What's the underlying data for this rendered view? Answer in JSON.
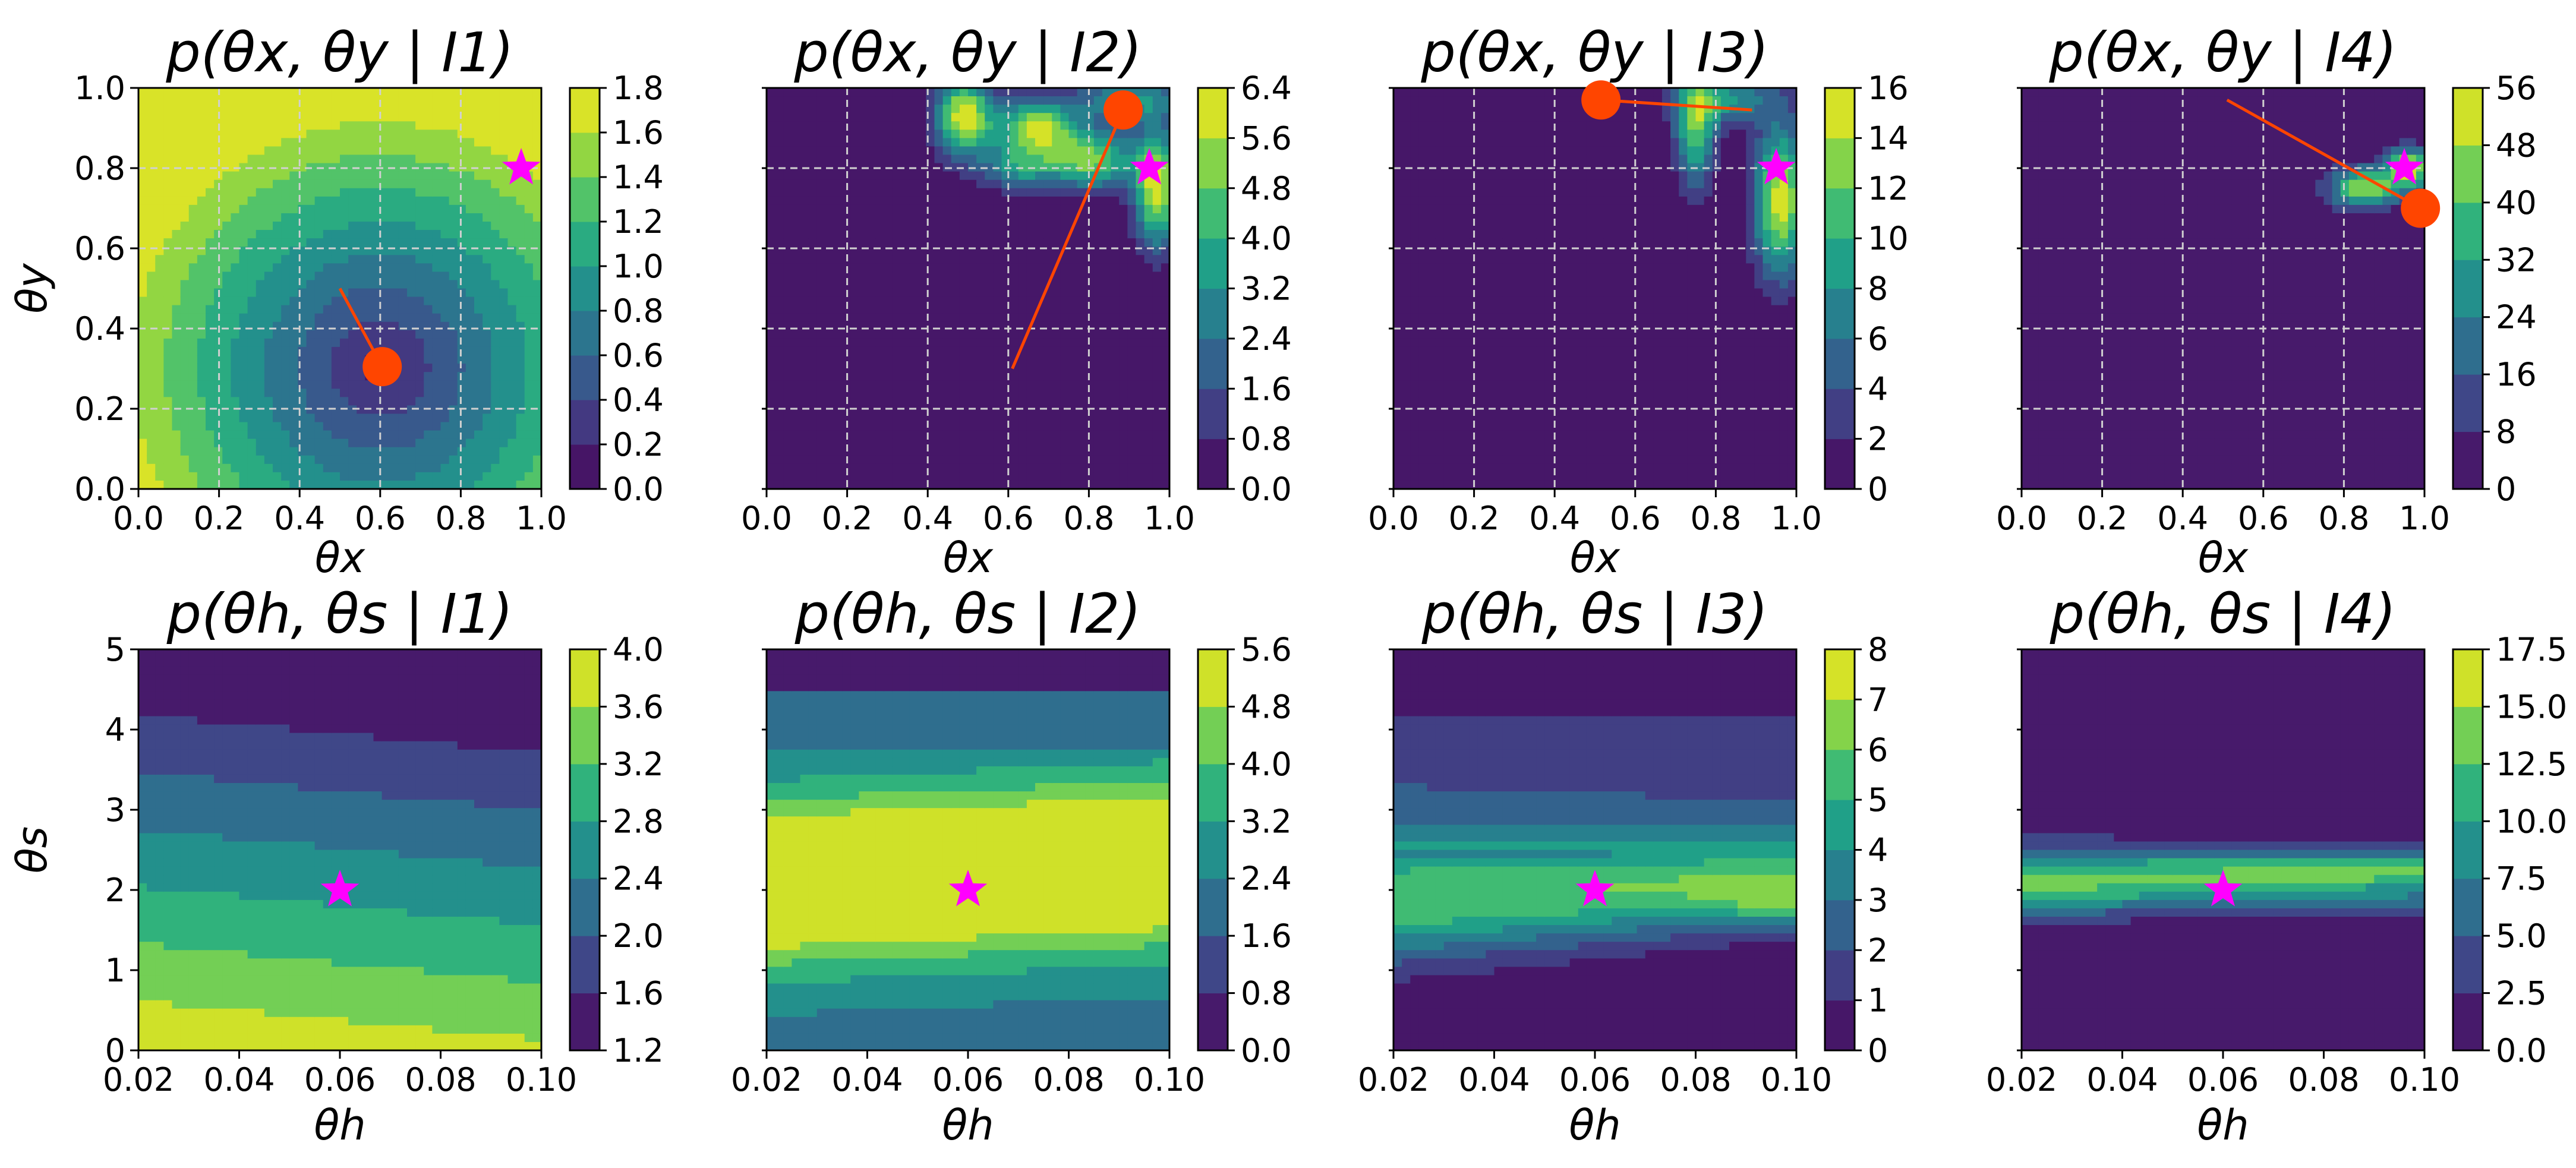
{
  "figure": {
    "type": "contour_grid",
    "rows": 2,
    "cols": 4
  },
  "colors": {
    "marker_estimate": "#ff4500",
    "marker_truth": "#ff00ff",
    "grid": "#d0d0d0",
    "viridis": [
      "#440154",
      "#482878",
      "#3e4989",
      "#31688e",
      "#26828e",
      "#1f9e89",
      "#35b779",
      "#6ece58",
      "#b5de2b",
      "#fde725"
    ]
  },
  "chart_data": [
    {
      "type": "heatmap",
      "title": "p(θx, θy | I1)",
      "xlabel": "θx",
      "ylabel": "θy",
      "xlim": [
        0.0,
        1.0
      ],
      "ylim": [
        0.0,
        1.0
      ],
      "xticks": [
        "0.0",
        "0.2",
        "0.4",
        "0.6",
        "0.8",
        "1.0"
      ],
      "yticks": [
        "0.0",
        "0.2",
        "0.4",
        "0.6",
        "0.8",
        "1.0"
      ],
      "grid": true,
      "colorbar_ticks": [
        "0.0",
        "0.2",
        "0.4",
        "0.6",
        "0.8",
        "1.0",
        "1.2",
        "1.4",
        "1.6",
        "1.8"
      ],
      "colorbar_range": [
        0.0,
        1.8
      ],
      "truth_marker": {
        "x": 0.95,
        "y": 0.8
      },
      "estimate_marker": {
        "x": 0.605,
        "y": 0.305
      },
      "estimate_trail": [
        [
          0.5,
          0.5
        ],
        [
          0.605,
          0.305
        ]
      ]
    },
    {
      "type": "heatmap",
      "title": "p(θx, θy | I2)",
      "xlabel": "θx",
      "ylabel": "",
      "xlim": [
        0.0,
        1.0
      ],
      "ylim": [
        0.0,
        1.0
      ],
      "xticks": [
        "0.0",
        "0.2",
        "0.4",
        "0.6",
        "0.8",
        "1.0"
      ],
      "yticks": [],
      "grid": true,
      "colorbar_ticks": [
        "0.0",
        "0.8",
        "1.6",
        "2.4",
        "3.2",
        "4.0",
        "4.8",
        "5.6",
        "6.4"
      ],
      "colorbar_range": [
        0.0,
        6.4
      ],
      "truth_marker": {
        "x": 0.95,
        "y": 0.8
      },
      "estimate_marker": {
        "x": 0.885,
        "y": 0.945
      },
      "estimate_trail": [
        [
          0.61,
          0.3
        ],
        [
          0.885,
          0.945
        ]
      ]
    },
    {
      "type": "heatmap",
      "title": "p(θx, θy | I3)",
      "xlabel": "θx",
      "ylabel": "",
      "xlim": [
        0.0,
        1.0
      ],
      "ylim": [
        0.0,
        1.0
      ],
      "xticks": [
        "0.0",
        "0.2",
        "0.4",
        "0.6",
        "0.8",
        "1.0"
      ],
      "yticks": [],
      "grid": true,
      "colorbar_ticks": [
        "0",
        "2",
        "4",
        "6",
        "8",
        "10",
        "12",
        "14",
        "16"
      ],
      "colorbar_range": [
        0,
        16
      ],
      "truth_marker": {
        "x": 0.95,
        "y": 0.8
      },
      "estimate_marker": {
        "x": 0.515,
        "y": 0.97
      },
      "estimate_trail": [
        [
          0.89,
          0.945
        ],
        [
          0.515,
          0.97
        ]
      ]
    },
    {
      "type": "heatmap",
      "title": "p(θx, θy | I4)",
      "xlabel": "θx",
      "ylabel": "",
      "xlim": [
        0.0,
        1.0
      ],
      "ylim": [
        0.0,
        1.0
      ],
      "xticks": [
        "0.0",
        "0.2",
        "0.4",
        "0.6",
        "0.8",
        "1.0"
      ],
      "yticks": [],
      "grid": true,
      "colorbar_ticks": [
        "0",
        "8",
        "16",
        "24",
        "32",
        "40",
        "48",
        "56"
      ],
      "colorbar_range": [
        0,
        56
      ],
      "truth_marker": {
        "x": 0.95,
        "y": 0.8
      },
      "estimate_marker": {
        "x": 0.99,
        "y": 0.7
      },
      "estimate_trail": [
        [
          0.51,
          0.97
        ],
        [
          0.99,
          0.7
        ]
      ]
    },
    {
      "type": "heatmap",
      "title": "p(θh, θs | I1)",
      "xlabel": "θh",
      "ylabel": "θs",
      "xlim": [
        0.02,
        0.1
      ],
      "ylim": [
        0,
        5
      ],
      "xticks": [
        "0.02",
        "0.04",
        "0.06",
        "0.08",
        "0.10"
      ],
      "yticks": [
        "0",
        "1",
        "2",
        "3",
        "4",
        "5"
      ],
      "grid": false,
      "colorbar_ticks": [
        "1.2",
        "1.6",
        "2.0",
        "2.4",
        "2.8",
        "3.2",
        "3.6",
        "4.0"
      ],
      "colorbar_range": [
        1.2,
        4.0
      ],
      "truth_marker": {
        "x": 0.06,
        "y": 2.0
      }
    },
    {
      "type": "heatmap",
      "title": "p(θh, θs | I2)",
      "xlabel": "θh",
      "ylabel": "",
      "xlim": [
        0.02,
        0.1
      ],
      "ylim": [
        0,
        5
      ],
      "xticks": [
        "0.02",
        "0.04",
        "0.06",
        "0.08",
        "0.10"
      ],
      "yticks": [],
      "grid": false,
      "colorbar_ticks": [
        "0.0",
        "0.8",
        "1.6",
        "2.4",
        "3.2",
        "4.0",
        "4.8",
        "5.6"
      ],
      "colorbar_range": [
        0.0,
        5.6
      ],
      "truth_marker": {
        "x": 0.06,
        "y": 2.0
      }
    },
    {
      "type": "heatmap",
      "title": "p(θh, θs | I3)",
      "xlabel": "θh",
      "ylabel": "",
      "xlim": [
        0.02,
        0.1
      ],
      "ylim": [
        0,
        5
      ],
      "xticks": [
        "0.02",
        "0.04",
        "0.06",
        "0.08",
        "0.10"
      ],
      "yticks": [],
      "grid": false,
      "colorbar_ticks": [
        "0",
        "1",
        "2",
        "3",
        "4",
        "5",
        "6",
        "7",
        "8"
      ],
      "colorbar_range": [
        0,
        8
      ],
      "truth_marker": {
        "x": 0.06,
        "y": 2.0
      }
    },
    {
      "type": "heatmap",
      "title": "p(θh, θs | I4)",
      "xlabel": "θh",
      "ylabel": "",
      "xlim": [
        0.02,
        0.1
      ],
      "ylim": [
        0,
        5
      ],
      "xticks": [
        "0.02",
        "0.04",
        "0.06",
        "0.08",
        "0.10"
      ],
      "yticks": [],
      "grid": false,
      "colorbar_ticks": [
        "0.0",
        "2.5",
        "5.0",
        "7.5",
        "10.0",
        "12.5",
        "15.0",
        "17.5"
      ],
      "colorbar_range": [
        0.0,
        17.5
      ],
      "truth_marker": {
        "x": 0.06,
        "y": 2.0
      }
    }
  ]
}
